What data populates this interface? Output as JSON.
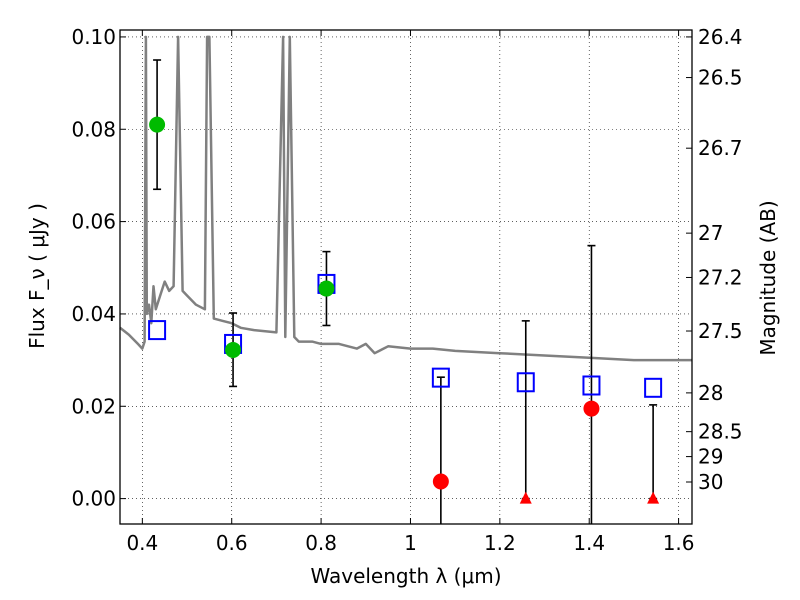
{
  "chart_data": {
    "type": "scatter",
    "xlabel": "Wavelength  λ (μm)",
    "ylabel": "Flux  F_ν  ( μJy )",
    "ylabel_right": "Magnitude (AB)",
    "xlim": [
      0.35,
      1.63
    ],
    "ylim": [
      -0.0055,
      0.1015
    ],
    "x_ticks": [
      0.4,
      0.6,
      0.8,
      1.0,
      1.2,
      1.4,
      1.6
    ],
    "x_tick_labels": [
      "0.4",
      "0.6",
      "0.8",
      "1",
      "1.2",
      "1.4",
      "1.6"
    ],
    "y_ticks": [
      0.0,
      0.02,
      0.04,
      0.06,
      0.08,
      0.1
    ],
    "y_tick_labels": [
      "0.00",
      "0.02",
      "0.04",
      "0.06",
      "0.08",
      "0.10"
    ],
    "right_ticks": [
      {
        "label": "26.4",
        "flux": 0.1
      },
      {
        "label": "26.5",
        "flux": 0.0912
      },
      {
        "label": "26.7",
        "flux": 0.0759
      },
      {
        "label": "27",
        "flux": 0.0575
      },
      {
        "label": "27.2",
        "flux": 0.0479
      },
      {
        "label": "27.5",
        "flux": 0.0363
      },
      {
        "label": "28",
        "flux": 0.0229
      },
      {
        "label": "28.5",
        "flux": 0.0145
      },
      {
        "label": "29",
        "flux": 0.0091
      },
      {
        "label": "30",
        "flux": 0.0036
      }
    ],
    "grid": true,
    "series": [
      {
        "kind": "line",
        "color": "#808080",
        "x": [
          0.35,
          0.37,
          0.39,
          0.4,
          0.405,
          0.408,
          0.41,
          0.415,
          0.42,
          0.425,
          0.43,
          0.44,
          0.45,
          0.46,
          0.47,
          0.48,
          0.49,
          0.5,
          0.52,
          0.54,
          0.545,
          0.55,
          0.56,
          0.58,
          0.6,
          0.62,
          0.65,
          0.7,
          0.715,
          0.72,
          0.73,
          0.74,
          0.75,
          0.78,
          0.8,
          0.84,
          0.88,
          0.9,
          0.92,
          0.95,
          1.0,
          1.05,
          1.1,
          1.2,
          1.3,
          1.4,
          1.5,
          1.6,
          1.63
        ],
        "y": [
          0.037,
          0.0355,
          0.0335,
          0.0325,
          0.034,
          0.1,
          0.04,
          0.042,
          0.038,
          0.046,
          0.041,
          0.044,
          0.047,
          0.045,
          0.046,
          0.1,
          0.045,
          0.044,
          0.042,
          0.041,
          0.1,
          0.1,
          0.039,
          0.0385,
          0.038,
          0.037,
          0.0365,
          0.036,
          0.1,
          0.035,
          0.1,
          0.035,
          0.034,
          0.034,
          0.0335,
          0.0335,
          0.0325,
          0.0335,
          0.0315,
          0.033,
          0.0325,
          0.0325,
          0.032,
          0.0315,
          0.031,
          0.0305,
          0.03,
          0.03,
          0.03
        ]
      },
      {
        "kind": "open-square",
        "color": "#0000ff",
        "x": [
          0.433,
          0.603,
          0.812,
          1.068,
          1.258,
          1.405,
          1.543
        ],
        "y": [
          0.0365,
          0.0335,
          0.0465,
          0.0262,
          0.0252,
          0.0245,
          0.024
        ]
      },
      {
        "kind": "filled-circle",
        "color": "#00bb00",
        "x": [
          0.433,
          0.603,
          0.812
        ],
        "y": [
          0.081,
          0.0322,
          0.0455
        ],
        "err_low": [
          0.067,
          0.0243,
          0.0375
        ],
        "err_high": [
          0.095,
          0.0402,
          0.0535
        ]
      },
      {
        "kind": "filled-circle",
        "color": "#ff0000",
        "x": [
          1.068,
          1.405
        ],
        "y": [
          0.0037,
          0.0195
        ],
        "err_low": [
          -0.0055,
          -0.0055
        ],
        "err_high": [
          0.0263,
          0.0548
        ]
      },
      {
        "kind": "filled-triangle",
        "color": "#ff0000",
        "x": [
          1.258,
          1.543
        ],
        "y": [
          0.0,
          0.0
        ],
        "err_low": [
          0.0,
          0.0
        ],
        "err_high": [
          0.0385,
          0.0203
        ]
      }
    ]
  }
}
